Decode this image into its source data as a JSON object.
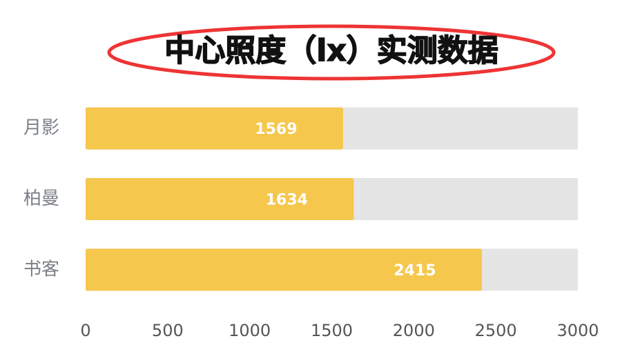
{
  "chart_data": {
    "type": "bar",
    "orientation": "horizontal",
    "title": "中心照度（lx）实测数据",
    "categories": [
      "月影",
      "柏曼",
      "书客"
    ],
    "values": [
      1569,
      1634,
      2415
    ],
    "color": "#f5c74d",
    "xlim": [
      0,
      3000
    ],
    "xticks": [
      0,
      500,
      1000,
      1500,
      2000,
      2500,
      3000
    ]
  }
}
